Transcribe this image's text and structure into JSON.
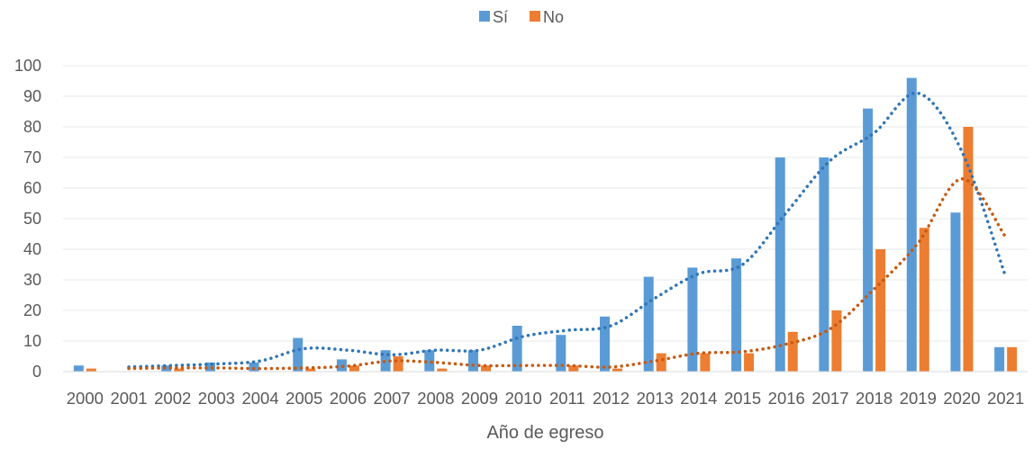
{
  "chart_data": {
    "type": "bar",
    "title": "",
    "xlabel": "Año de egreso",
    "ylabel": "",
    "ylim": [
      0,
      100
    ],
    "yticks": [
      0,
      10,
      20,
      30,
      40,
      50,
      60,
      70,
      80,
      90,
      100
    ],
    "grid": true,
    "legend_position": "top",
    "categories": [
      "2000",
      "2001",
      "2002",
      "2003",
      "2004",
      "2005",
      "2006",
      "2007",
      "2008",
      "2009",
      "2010",
      "2011",
      "2012",
      "2013",
      "2014",
      "2015",
      "2016",
      "2017",
      "2018",
      "2019",
      "2020",
      "2021"
    ],
    "series": [
      {
        "name": "Sí",
        "color": "#5B9BD5",
        "values": [
          2,
          0,
          2,
          3,
          3,
          11,
          4,
          7,
          7,
          7,
          15,
          12,
          18,
          31,
          34,
          37,
          70,
          70,
          86,
          96,
          52,
          8
        ],
        "trend_color": "#2E75B6",
        "trend": [
          null,
          1.5,
          2,
          2.5,
          3.5,
          7.5,
          7,
          5.5,
          7,
          7,
          11.5,
          13.5,
          15,
          24,
          32,
          35,
          52,
          69,
          78,
          91,
          72,
          31
        ]
      },
      {
        "name": "No",
        "color": "#ED7D31",
        "values": [
          1,
          0,
          1,
          0,
          0,
          1,
          2,
          5,
          1,
          2,
          0,
          2,
          1,
          6,
          6,
          6,
          13,
          20,
          40,
          47,
          80,
          8
        ],
        "trend_color": "#C55A11",
        "trend": [
          null,
          1,
          1.2,
          1.2,
          1,
          1.2,
          1.8,
          3.5,
          3,
          2,
          2,
          2,
          1.5,
          3.5,
          6,
          6.5,
          9,
          14,
          27,
          42,
          63,
          44
        ]
      }
    ]
  }
}
